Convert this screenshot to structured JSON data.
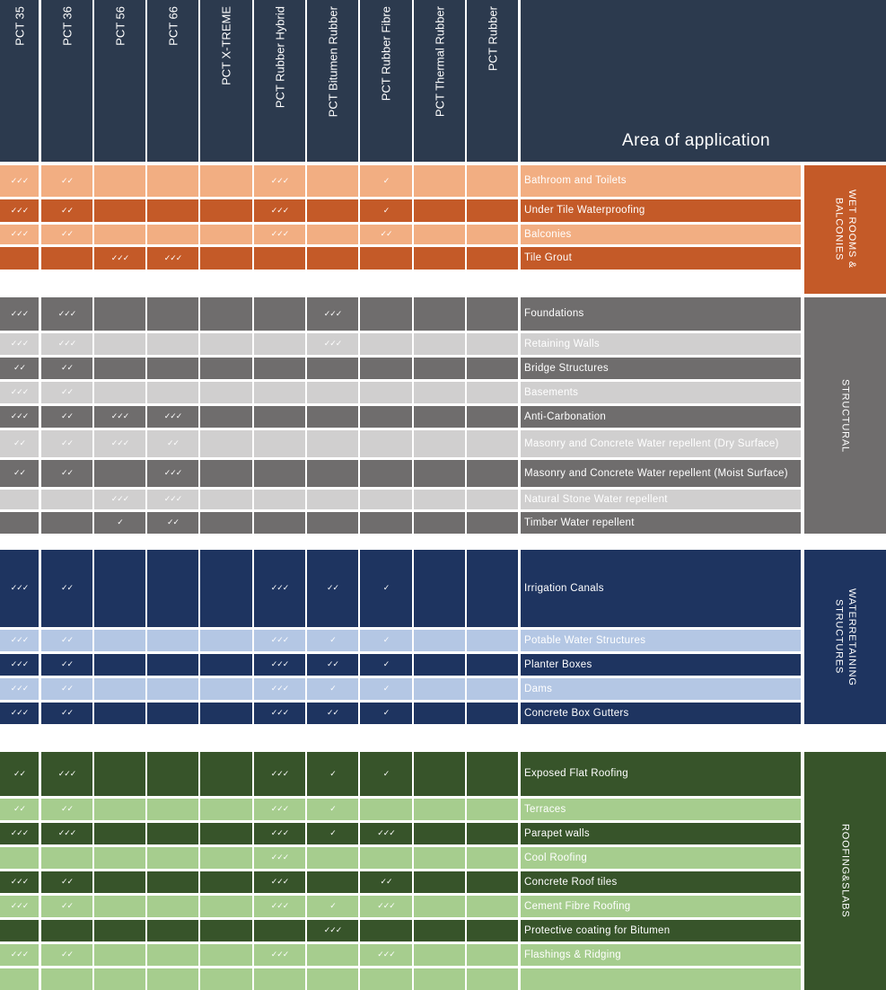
{
  "header": {
    "products": [
      "PCT 35",
      "PCT 36",
      "PCT 56",
      "PCT 66",
      "PCT X-TREME",
      "PCT Rubber Hybrid",
      "PCT Bitumen Rubber",
      "PCT Rubber Fibre",
      "PCT Thermal Rubber",
      "PCT Rubber"
    ],
    "area_title": "Area of application"
  },
  "colors": {
    "header": "#2c3a4e",
    "wet_light": "#f2ae82",
    "wet_dark": "#c45a28",
    "struct_dark": "#6f6d6d",
    "struct_light": "#d0cfcf",
    "water_dark": "#1e3460",
    "water_light": "#b4c7e4",
    "roof_dark": "#37542a",
    "roof_light": "#a6cd8e"
  },
  "sections": [
    {
      "name": "WET ROOMS &\nBALCONIES",
      "dark": "#c45a28",
      "light": "#f2ae82",
      "rows": [
        {
          "label": "Bathroom and Toilets",
          "shade": "light",
          "marks": [
            "✓✓✓",
            "✓✓",
            "",
            "",
            "",
            "✓✓✓",
            "",
            "✓",
            "",
            ""
          ]
        },
        {
          "label": "Under Tile Waterproofing",
          "shade": "dark",
          "marks": [
            "✓✓✓",
            "✓✓",
            "",
            "",
            "",
            "✓✓✓",
            "",
            "✓",
            "",
            ""
          ]
        },
        {
          "label": "Balconies",
          "shade": "light",
          "marks": [
            "✓✓✓",
            "✓✓",
            "",
            "",
            "",
            "✓✓✓",
            "",
            "✓✓",
            "",
            ""
          ]
        },
        {
          "label": "Tile Grout",
          "shade": "dark",
          "marks": [
            "",
            "",
            "✓✓✓",
            "✓✓✓",
            "",
            "",
            "",
            "",
            "",
            ""
          ]
        }
      ]
    },
    {
      "name": "STRUCTURAL",
      "dark": "#6f6d6d",
      "light": "#d0cfcf",
      "rows": [
        {
          "label": "Foundations",
          "shade": "dark",
          "marks": [
            "✓✓✓",
            "✓✓✓",
            "",
            "",
            "",
            "",
            "✓✓✓",
            "",
            "",
            ""
          ]
        },
        {
          "label": "Retaining Walls",
          "shade": "light",
          "marks": [
            "✓✓✓",
            "✓✓✓",
            "",
            "",
            "",
            "",
            "✓✓✓",
            "",
            "",
            ""
          ]
        },
        {
          "label": "Bridge Structures",
          "shade": "dark",
          "marks": [
            "✓✓",
            "✓✓",
            "",
            "",
            "",
            "",
            "",
            "",
            "",
            ""
          ]
        },
        {
          "label": "Basements",
          "shade": "light",
          "marks": [
            "✓✓✓",
            "✓✓",
            "",
            "",
            "",
            "",
            "",
            "",
            "",
            ""
          ]
        },
        {
          "label": "Anti-Carbonation",
          "shade": "dark",
          "marks": [
            "✓✓✓",
            "✓✓",
            "✓✓✓",
            "✓✓✓",
            "",
            "",
            "",
            "",
            "",
            ""
          ]
        },
        {
          "label": "Masonry and Concrete Water repellent (Dry Surface)",
          "shade": "light",
          "marks": [
            "✓✓",
            "✓✓",
            "✓✓✓",
            "✓✓",
            "",
            "",
            "",
            "",
            "",
            ""
          ]
        },
        {
          "label": "Masonry and Concrete Water repellent (Moist Surface)",
          "shade": "dark",
          "marks": [
            "✓✓",
            "✓✓",
            "",
            "✓✓✓",
            "",
            "",
            "",
            "",
            "",
            ""
          ]
        },
        {
          "label": "Natural Stone Water repellent",
          "shade": "light",
          "marks": [
            "",
            "",
            "✓✓✓",
            "✓✓✓",
            "",
            "",
            "",
            "",
            "",
            ""
          ]
        },
        {
          "label": "Timber Water repellent",
          "shade": "dark",
          "marks": [
            "",
            "",
            "✓",
            "✓✓",
            "",
            "",
            "",
            "",
            "",
            ""
          ]
        }
      ]
    },
    {
      "name": "WATERRETAINING\nSTRUCTURES",
      "dark": "#1e3460",
      "light": "#b4c7e4",
      "rows": [
        {
          "label": "Irrigation Canals",
          "shade": "dark",
          "marks": [
            "✓✓✓",
            "✓✓",
            "",
            "",
            "",
            "✓✓✓",
            "✓✓",
            "✓",
            "",
            ""
          ]
        },
        {
          "label": "Potable Water Structures",
          "shade": "light",
          "marks": [
            "✓✓✓",
            "✓✓",
            "",
            "",
            "",
            "✓✓✓",
            "✓",
            "✓",
            "",
            ""
          ]
        },
        {
          "label": "Planter Boxes",
          "shade": "dark",
          "marks": [
            "✓✓✓",
            "✓✓",
            "",
            "",
            "",
            "✓✓✓",
            "✓✓",
            "✓",
            "",
            ""
          ]
        },
        {
          "label": "Dams",
          "shade": "light",
          "marks": [
            "✓✓✓",
            "✓✓",
            "",
            "",
            "",
            "✓✓✓",
            "✓",
            "✓",
            "",
            ""
          ]
        },
        {
          "label": "Concrete Box Gutters",
          "shade": "dark",
          "marks": [
            "✓✓✓",
            "✓✓",
            "",
            "",
            "",
            "✓✓✓",
            "✓✓",
            "✓",
            "",
            ""
          ]
        }
      ]
    },
    {
      "name": "ROOFING&SLABS",
      "dark": "#37542a",
      "light": "#a6cd8e",
      "rows": [
        {
          "label": "Exposed Flat Roofing",
          "shade": "dark",
          "marks": [
            "✓✓",
            "✓✓✓",
            "",
            "",
            "",
            "✓✓✓",
            "✓",
            "✓",
            "",
            ""
          ]
        },
        {
          "label": "Terraces",
          "shade": "light",
          "marks": [
            "✓✓",
            "✓✓",
            "",
            "",
            "",
            "✓✓✓",
            "✓",
            "",
            "",
            ""
          ]
        },
        {
          "label": "Parapet walls",
          "shade": "dark",
          "marks": [
            "✓✓✓",
            "✓✓✓",
            "",
            "",
            "",
            "✓✓✓",
            "✓",
            "✓✓✓",
            "",
            ""
          ]
        },
        {
          "label": "Cool Roofing",
          "shade": "light",
          "marks": [
            "",
            "",
            "",
            "",
            "",
            "✓✓✓",
            "",
            "",
            "",
            ""
          ]
        },
        {
          "label": "Concrete Roof tiles",
          "shade": "dark",
          "marks": [
            "✓✓✓",
            "✓✓",
            "",
            "",
            "",
            "✓✓✓",
            "",
            "✓✓",
            "",
            ""
          ]
        },
        {
          "label": "Cement Fibre Roofing",
          "shade": "light",
          "marks": [
            "✓✓✓",
            "✓✓",
            "",
            "",
            "",
            "✓✓✓",
            "✓",
            "✓✓✓",
            "",
            ""
          ]
        },
        {
          "label": "Protective coating for Bitumen",
          "shade": "dark",
          "marks": [
            "",
            "",
            "",
            "",
            "",
            "",
            "✓✓✓",
            "",
            "",
            ""
          ]
        },
        {
          "label": "Flashings & Ridging",
          "shade": "light",
          "marks": [
            "✓✓✓",
            "✓✓",
            "",
            "",
            "",
            "✓✓✓",
            "",
            "✓✓✓",
            "",
            ""
          ]
        },
        {
          "label": "",
          "shade": "light",
          "marks": [
            "",
            "",
            "",
            "",
            "",
            "",
            "",
            "",
            "",
            ""
          ]
        }
      ]
    }
  ]
}
